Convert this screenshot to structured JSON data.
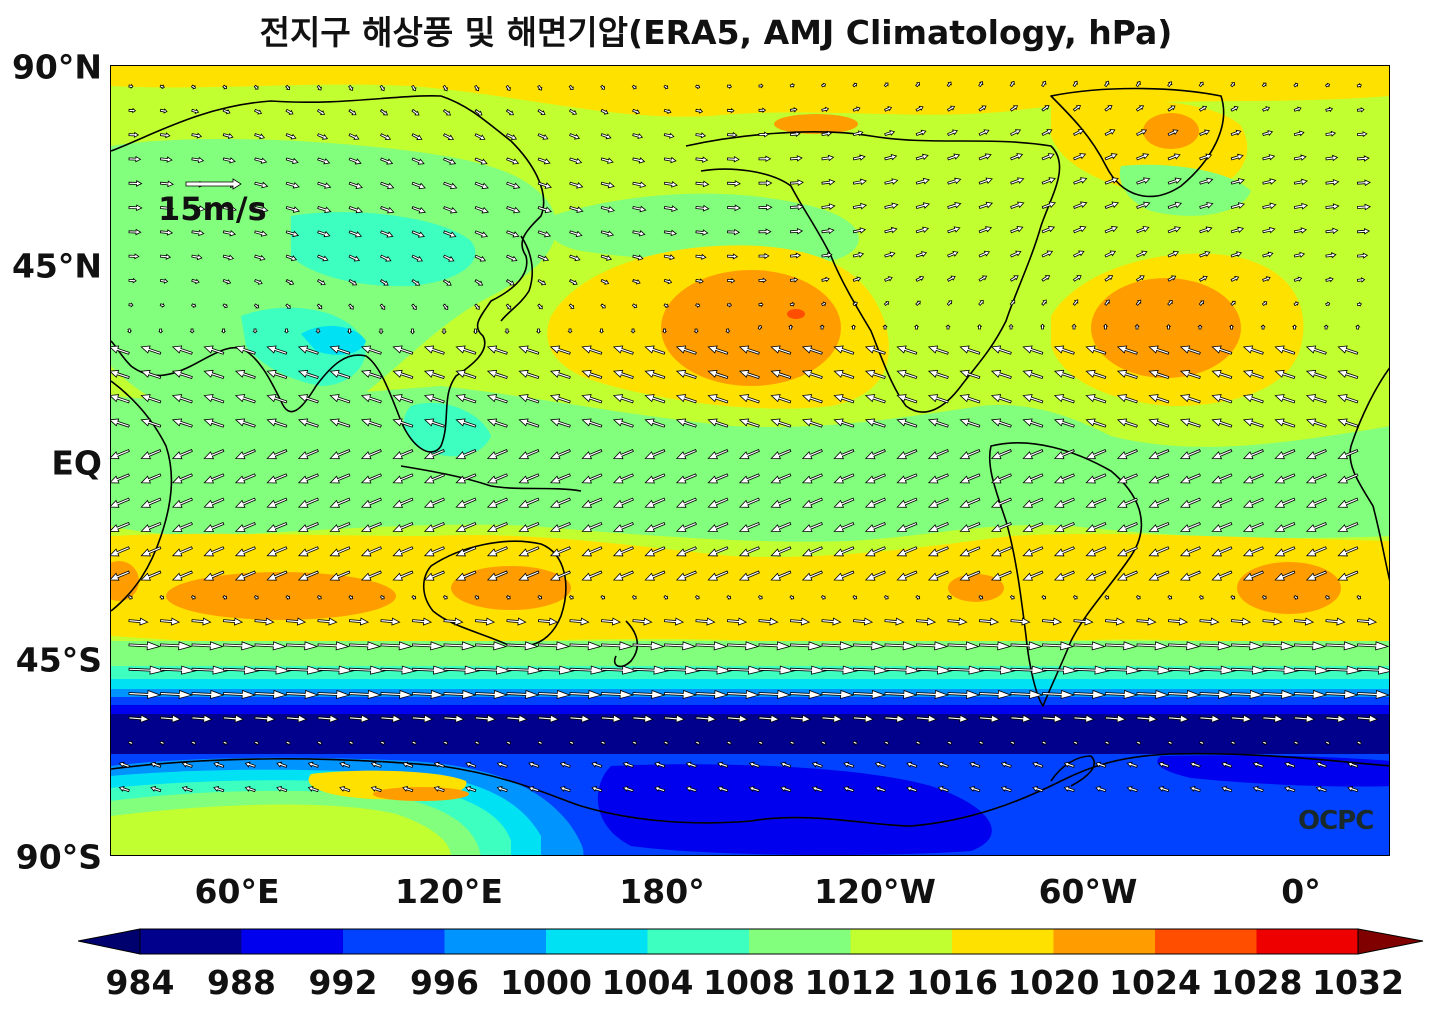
{
  "title": "전지구 해상풍 및 해면기압(ERA5, AMJ Climatology, hPa)",
  "lat_labels": [
    "90°N",
    "45°N",
    "EQ",
    "45°S",
    "90°S"
  ],
  "lon_labels": [
    "60°E",
    "120°E",
    "180°",
    "120°W",
    "60°W",
    "0°"
  ],
  "reference_vector": {
    "label": "15m/s",
    "speed_ms": 15
  },
  "watermark": "OCPC",
  "colorbar": {
    "ticks": [
      "984",
      "988",
      "992",
      "996",
      "1000",
      "1004",
      "1008",
      "1012",
      "1016",
      "1020",
      "1024",
      "1028",
      "1032"
    ],
    "colors": [
      "#00008c",
      "#0000ee",
      "#0042ff",
      "#0094ff",
      "#00e2f4",
      "#3dffc0",
      "#82ff7c",
      "#c2ff30",
      "#ffe100",
      "#ff9d00",
      "#ff4e00",
      "#ee0000",
      "#800000"
    ],
    "under_color": "#00006e",
    "over_color": "#800000",
    "units": "hPa"
  },
  "map_colors": {
    "ocean_base": "#c2ff30",
    "land_line": "#000000"
  }
}
